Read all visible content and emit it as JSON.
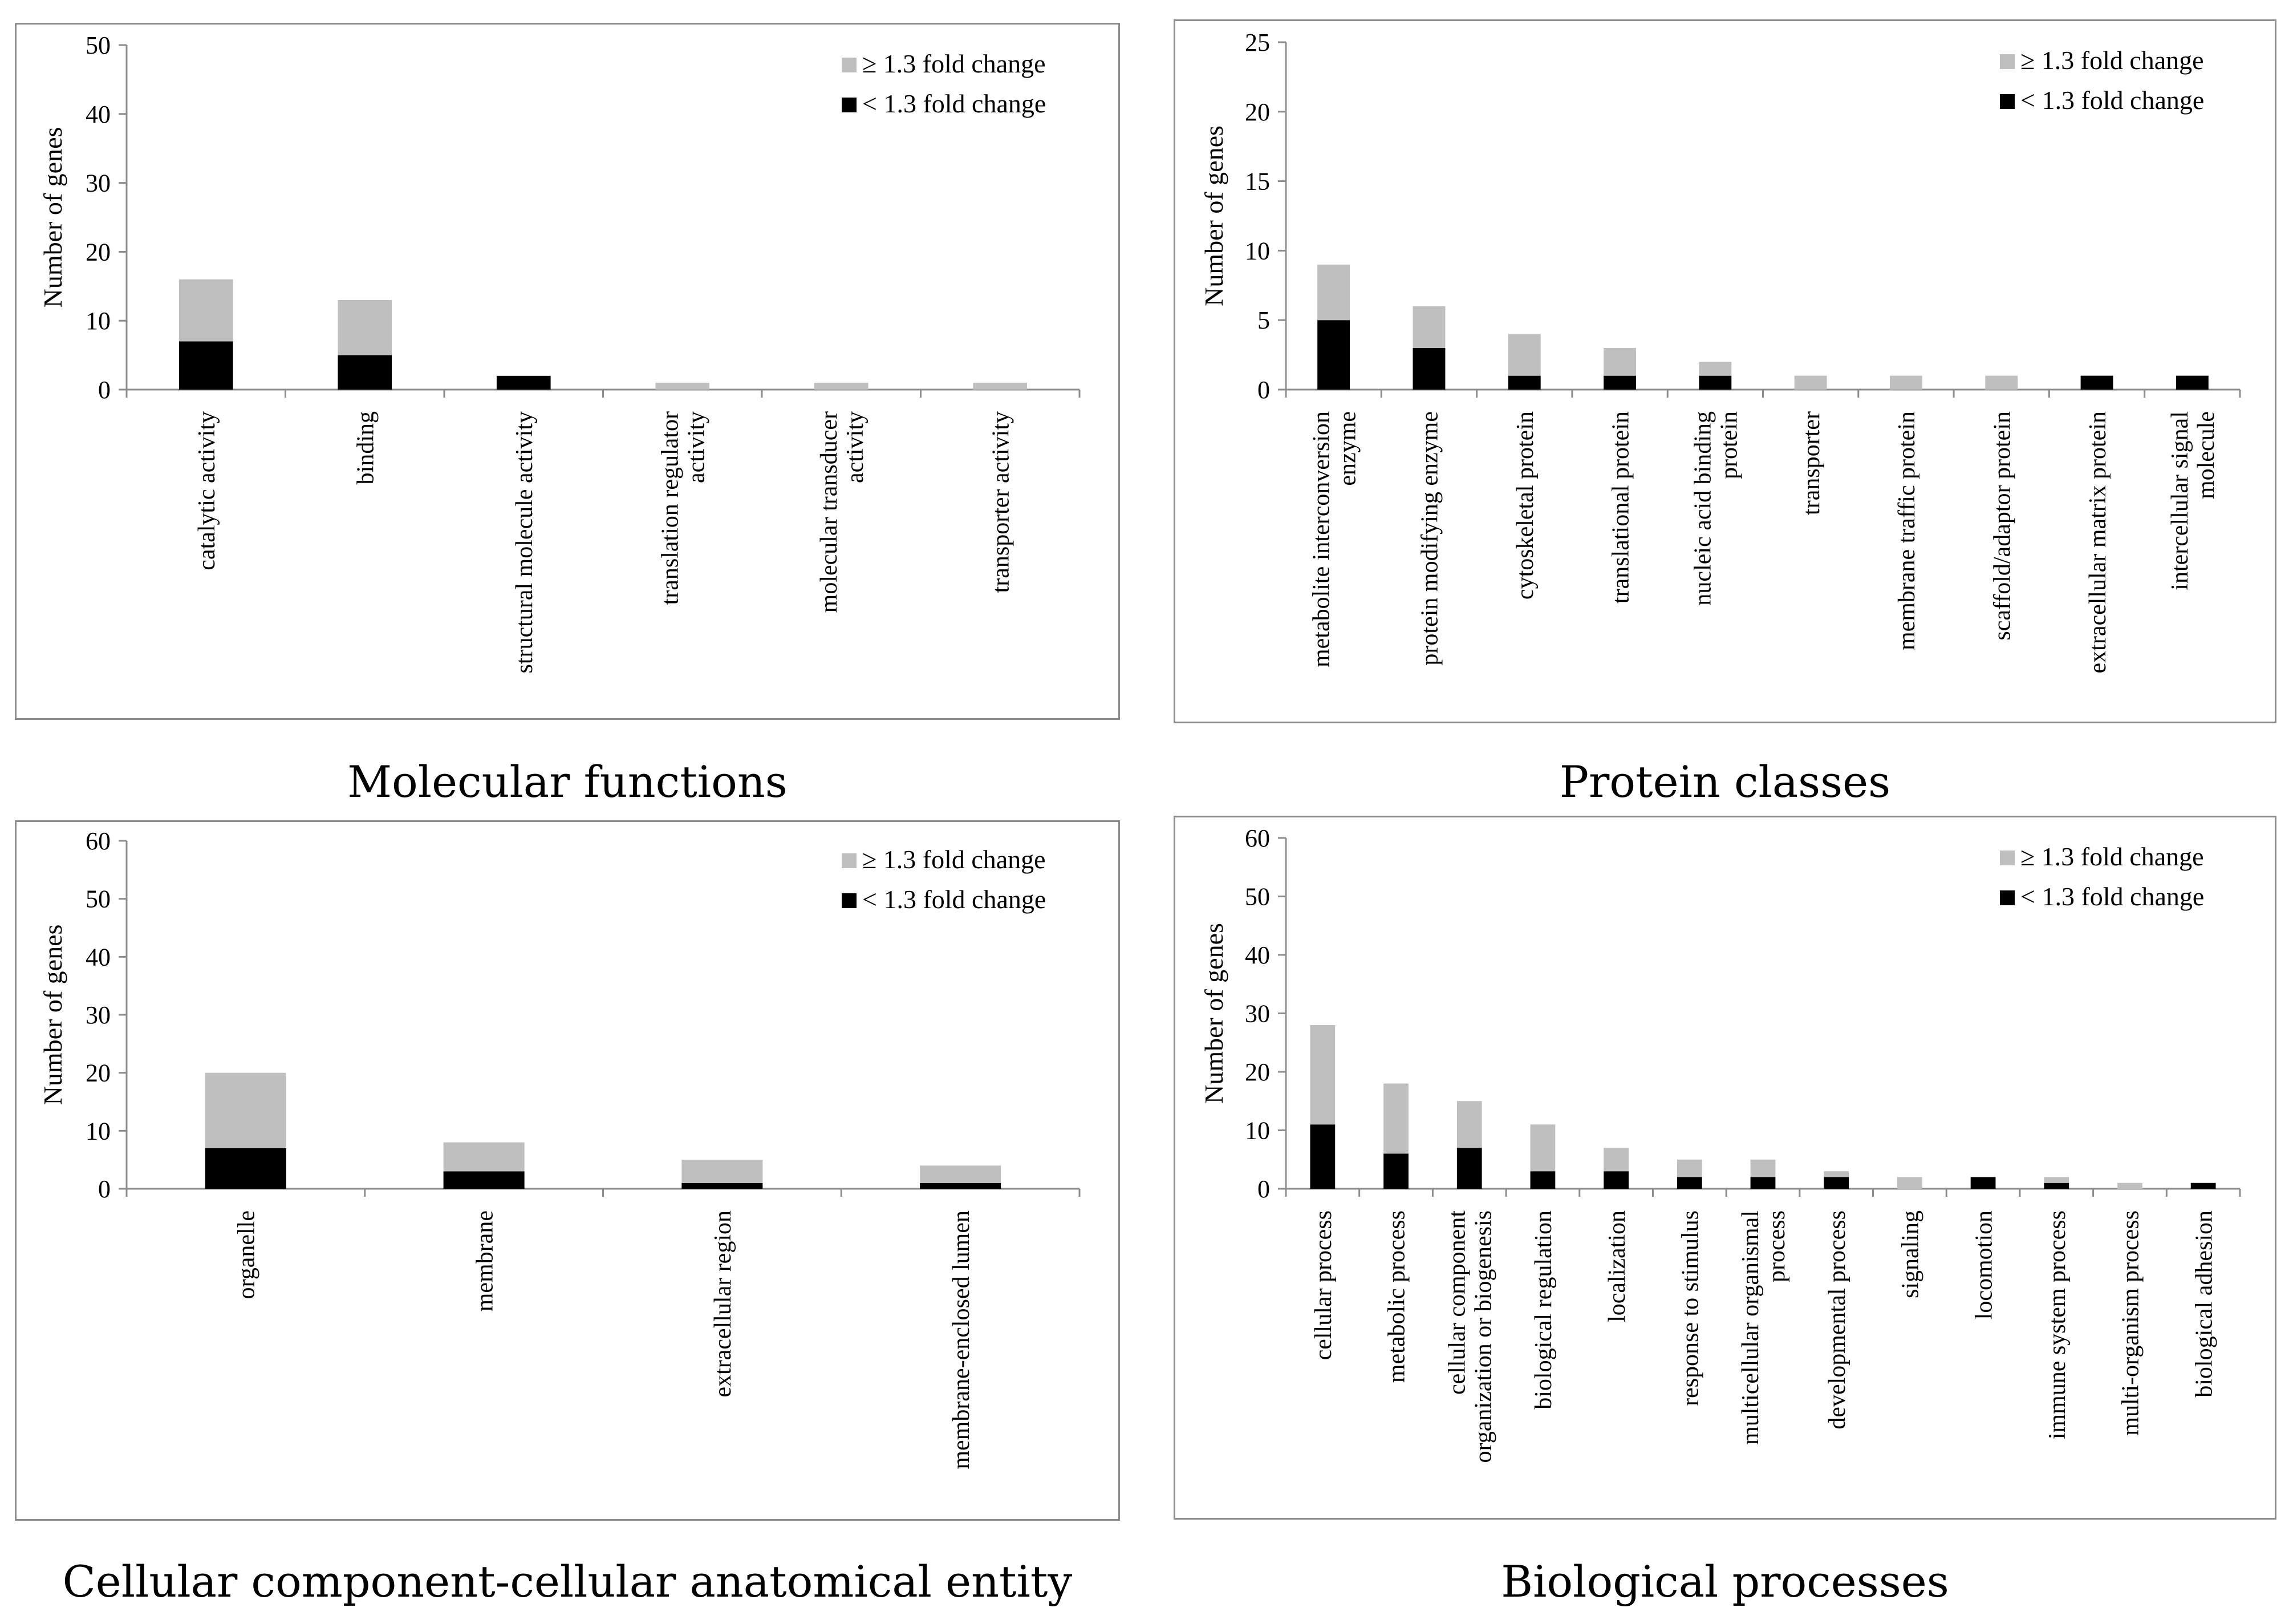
{
  "colors": {
    "ge_13": "#bfbfbf",
    "lt_13": "#000000",
    "axis": "#8c8c8c",
    "frame": "#8c8c8c"
  },
  "chart_data": [
    {
      "type": "bar",
      "stacked": true,
      "title": "Molecular functions",
      "xlabel": "",
      "ylabel": "Number of genes",
      "ylim": [
        0,
        50
      ],
      "yticks": [
        0,
        10,
        20,
        30,
        40,
        50
      ],
      "legend_position": "top-right",
      "categories": [
        [
          "catalytic activity"
        ],
        [
          "binding"
        ],
        [
          "structural molecule activity"
        ],
        [
          "translation regulator",
          "activity"
        ],
        [
          "molecular transducer",
          "activity"
        ],
        [
          "transporter activity"
        ]
      ],
      "series": [
        {
          "name": "< 1.3 fold change",
          "color": "#000000",
          "values": [
            7,
            5,
            2,
            0,
            0,
            0
          ]
        },
        {
          "name": "≥ 1.3 fold change",
          "color": "#bfbfbf",
          "values": [
            9,
            8,
            0,
            1,
            1,
            1
          ]
        }
      ]
    },
    {
      "type": "bar",
      "stacked": true,
      "title": "Protein classes",
      "xlabel": "",
      "ylabel": "Number of genes",
      "ylim": [
        0,
        25
      ],
      "yticks": [
        0,
        5,
        10,
        15,
        20,
        25
      ],
      "legend_position": "top-right",
      "categories": [
        [
          "metabolite interconversion",
          "enzyme"
        ],
        [
          "protein modifying enzyme"
        ],
        [
          "cytoskeletal protein"
        ],
        [
          "translational protein"
        ],
        [
          "nucleic acid binding",
          "protein"
        ],
        [
          "transporter"
        ],
        [
          "membrane traffic protein"
        ],
        [
          "scaffold/adaptor protein"
        ],
        [
          "extracellular matrix protein"
        ],
        [
          "intercellular signal",
          "molecule"
        ]
      ],
      "series": [
        {
          "name": "< 1.3 fold change",
          "color": "#000000",
          "values": [
            5,
            3,
            1,
            1,
            1,
            0,
            0,
            0,
            1,
            1
          ]
        },
        {
          "name": "≥ 1.3 fold change",
          "color": "#bfbfbf",
          "values": [
            4,
            3,
            3,
            2,
            1,
            1,
            1,
            1,
            0,
            0
          ]
        }
      ]
    },
    {
      "type": "bar",
      "stacked": true,
      "title": "Cellular component-cellular anatomical entity",
      "xlabel": "",
      "ylabel": "Number of genes",
      "ylim": [
        0,
        60
      ],
      "yticks": [
        0,
        10,
        20,
        30,
        40,
        50,
        60
      ],
      "legend_position": "top-right",
      "categories": [
        [
          "organelle"
        ],
        [
          "membrane"
        ],
        [
          "extracellular region"
        ],
        [
          "membrane-enclosed lumen"
        ]
      ],
      "series": [
        {
          "name": "< 1.3 fold change",
          "color": "#000000",
          "values": [
            7,
            3,
            1,
            1
          ]
        },
        {
          "name": "≥ 1.3 fold change",
          "color": "#bfbfbf",
          "values": [
            13,
            5,
            4,
            3
          ]
        }
      ]
    },
    {
      "type": "bar",
      "stacked": true,
      "title": "Biological processes",
      "xlabel": "",
      "ylabel": "Number of genes",
      "ylim": [
        0,
        60
      ],
      "yticks": [
        0,
        10,
        20,
        30,
        40,
        50,
        60
      ],
      "legend_position": "top-right",
      "categories": [
        [
          "cellular process"
        ],
        [
          "metabolic process"
        ],
        [
          "cellular component",
          "organization or biogenesis"
        ],
        [
          "biological regulation"
        ],
        [
          "localization"
        ],
        [
          "response to stimulus"
        ],
        [
          "multicellular organismal",
          "process"
        ],
        [
          "developmental process"
        ],
        [
          "signaling"
        ],
        [
          "locomotion"
        ],
        [
          "immune system process"
        ],
        [
          "multi-organism process"
        ],
        [
          "biological adhesion"
        ]
      ],
      "series": [
        {
          "name": "< 1.3 fold change",
          "color": "#000000",
          "values": [
            11,
            6,
            7,
            3,
            3,
            2,
            2,
            2,
            0,
            2,
            1,
            0,
            1
          ]
        },
        {
          "name": "≥ 1.3 fold change",
          "color": "#bfbfbf",
          "values": [
            17,
            12,
            8,
            8,
            4,
            3,
            3,
            1,
            2,
            0,
            1,
            1,
            0
          ]
        }
      ]
    }
  ]
}
